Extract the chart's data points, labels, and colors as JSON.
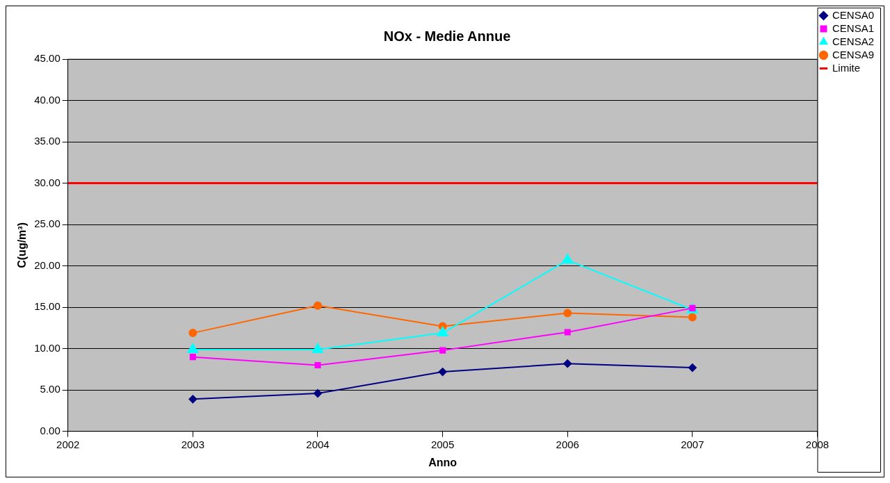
{
  "chart_data": {
    "type": "line",
    "title": "NOx - Medie Annue",
    "xlabel": "Anno",
    "ylabel": "C(ug/m³)",
    "xlim": [
      2002,
      2008
    ],
    "xticks": [
      2002,
      2003,
      2004,
      2005,
      2006,
      2007,
      2008
    ],
    "ylim": [
      0,
      45
    ],
    "yticks": [
      {
        "value": 0,
        "label": "0.00"
      },
      {
        "value": 5,
        "label": "5.00"
      },
      {
        "value": 10,
        "label": "10.00"
      },
      {
        "value": 15,
        "label": "15.00"
      },
      {
        "value": 20,
        "label": "20.00"
      },
      {
        "value": 25,
        "label": "25.00"
      },
      {
        "value": 30,
        "label": "30.00"
      },
      {
        "value": 35,
        "label": "35.00"
      },
      {
        "value": 40,
        "label": "40.00"
      },
      {
        "value": 45,
        "label": "45.00"
      }
    ],
    "x": [
      2003,
      2004,
      2005,
      2006,
      2007
    ],
    "grid": "y",
    "legend": "top right",
    "series": [
      {
        "name": "CENSA0",
        "color": "#000080",
        "marker": "diamond",
        "values": [
          3.9,
          4.6,
          7.2,
          8.2,
          7.7
        ]
      },
      {
        "name": "CENSA1",
        "color": "#ff00ff",
        "marker": "square",
        "values": [
          9.0,
          8.0,
          9.8,
          12.0,
          14.9
        ]
      },
      {
        "name": "CENSA2",
        "color": "#00ffff",
        "marker": "triangle",
        "values": [
          9.9,
          9.9,
          11.9,
          20.7,
          14.7
        ]
      },
      {
        "name": "CENSA9",
        "color": "#ff6600",
        "marker": "circle",
        "values": [
          11.9,
          15.2,
          12.7,
          14.3,
          13.8
        ]
      },
      {
        "name": "Limite",
        "color": "#ff0000",
        "marker": "none",
        "x": [
          2002,
          2008
        ],
        "values": [
          30,
          30
        ]
      }
    ]
  }
}
